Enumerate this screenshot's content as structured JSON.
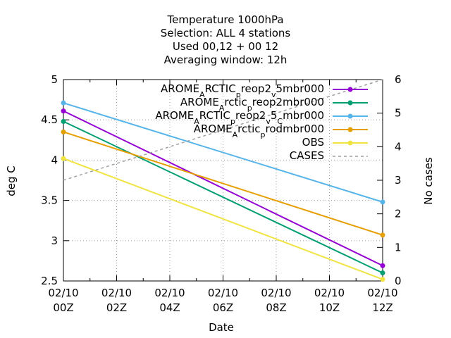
{
  "chart_data": {
    "type": "line",
    "title_lines": [
      "Temperature 1000hPa",
      "Selection: ALL      4 stations",
      "Used  00,12  + 00  12",
      "Averaging window: 12h"
    ],
    "xlabel": "Date",
    "ylabel": "deg C",
    "y2label": "No cases",
    "x_ticks": [
      {
        "line1": "02/10",
        "line2": "00Z",
        "pos": 0
      },
      {
        "line1": "02/10",
        "line2": "02Z",
        "pos": 2
      },
      {
        "line1": "02/10",
        "line2": "04Z",
        "pos": 4
      },
      {
        "line1": "02/10",
        "line2": "06Z",
        "pos": 6
      },
      {
        "line1": "02/10",
        "line2": "08Z",
        "pos": 8
      },
      {
        "line1": "02/10",
        "line2": "10Z",
        "pos": 10
      },
      {
        "line1": "02/10",
        "line2": "12Z",
        "pos": 12
      }
    ],
    "xlim": [
      0,
      12
    ],
    "ylim": [
      2.5,
      5
    ],
    "y_ticks": [
      "2.5",
      "3",
      "3.5",
      "4",
      "4.5",
      "5"
    ],
    "y2lim": [
      0,
      6
    ],
    "y2_ticks": [
      "0",
      "1",
      "2",
      "3",
      "4",
      "5",
      "6"
    ],
    "grid": true,
    "legend_position": "top-right",
    "x": [
      0,
      12
    ],
    "series": [
      {
        "name": "AROME_ARCTIC_preop2_v_5mbr000",
        "legend_parts": [
          [
            "AROME",
            0
          ],
          [
            "A",
            1
          ],
          [
            "RCTIC",
            0
          ],
          [
            "p",
            1
          ],
          [
            "reop2",
            0
          ],
          [
            "v",
            1
          ],
          [
            "5mbr000",
            0
          ]
        ],
        "color": "#9400d3",
        "values": [
          4.61,
          2.69
        ],
        "axis": "y1",
        "markers": true
      },
      {
        "name": "AROME_Arctic_preop2mbr000",
        "legend_parts": [
          [
            "AROME",
            0
          ],
          [
            "A",
            1
          ],
          [
            "rctic",
            0
          ],
          [
            "p",
            1
          ],
          [
            "reop2mbr000",
            0
          ]
        ],
        "color": "#009e73",
        "values": [
          4.48,
          2.6
        ],
        "axis": "y1",
        "markers": true
      },
      {
        "name": "AROME_ARCTIC_preop2_v_5_Cmbr000",
        "legend_parts": [
          [
            "AROME",
            0
          ],
          [
            "A",
            1
          ],
          [
            "RCTIC",
            0
          ],
          [
            "p",
            1
          ],
          [
            "reop2",
            0
          ],
          [
            "v",
            1
          ],
          [
            "5",
            0
          ],
          [
            "C",
            1
          ],
          [
            "mbr000",
            0
          ]
        ],
        "color": "#56b4e9",
        "values": [
          4.71,
          3.48
        ],
        "axis": "y1",
        "markers": true
      },
      {
        "name": "AROME_Arctic_prodmbr000",
        "legend_parts": [
          [
            "AROME",
            0
          ],
          [
            "A",
            1
          ],
          [
            "rctic",
            0
          ],
          [
            "p",
            1
          ],
          [
            "rodmbr000",
            0
          ]
        ],
        "color": "#e69f00",
        "values": [
          4.35,
          3.07
        ],
        "axis": "y1",
        "markers": true
      },
      {
        "name": "OBS",
        "legend_parts": [
          [
            "OBS",
            0
          ]
        ],
        "color": "#f0e442",
        "values": [
          4.02,
          2.52
        ],
        "axis": "y1",
        "markers": true
      },
      {
        "name": "CASES",
        "legend_parts": [
          [
            "CASES",
            0
          ]
        ],
        "color": "#a0a0a0",
        "values": [
          3.0,
          6.0
        ],
        "axis": "y2",
        "markers": false,
        "dashed": true
      }
    ]
  }
}
